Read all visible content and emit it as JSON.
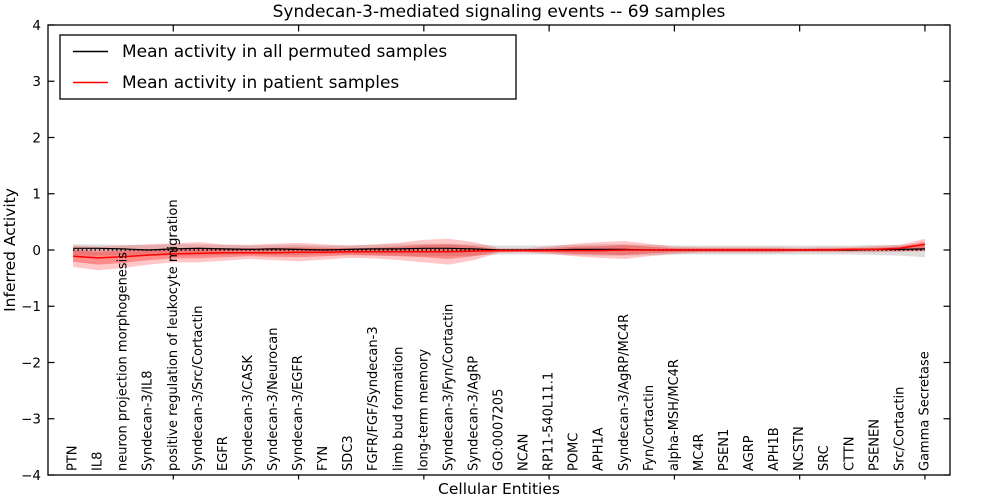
{
  "title": "Syndecan-3-mediated signaling events -- 69 samples",
  "axes": {
    "xlabel": "Cellular Entities",
    "ylabel": "Inferred Activity",
    "ylim": [
      -4,
      4
    ],
    "y_ticks": [
      4,
      3,
      2,
      1,
      0,
      -1,
      -2,
      -3,
      -4
    ],
    "y_tick_labels": [
      "4",
      "3",
      "2",
      "1",
      "0",
      "−1",
      "−2",
      "−3",
      "−4"
    ],
    "x_major_ticks": [
      5,
      10,
      15,
      20,
      25,
      30,
      35
    ]
  },
  "legend": {
    "position": "upper left",
    "entries": [
      {
        "label": "Mean activity in all permuted samples",
        "color": "#000000"
      },
      {
        "label": "Mean activity in patient samples",
        "color": "#ff0000"
      }
    ]
  },
  "chart_data": {
    "type": "line",
    "title": "Syndecan-3-mediated signaling events -- 69 samples",
    "xlabel": "Cellular Entities",
    "ylabel": "Inferred Activity",
    "ylim": [
      -4,
      4
    ],
    "grid": false,
    "legend_position": "upper left",
    "zero_line": {
      "show": true,
      "color": "#000000",
      "style": "dotted"
    },
    "categories": [
      "PTN",
      "IL8",
      "neuron projection morphogenesis",
      "Syndecan-3/IL8",
      "positive regulation of leukocyte migration",
      "Syndecan-3/Src/Cortactin",
      "EGFR",
      "Syndecan-3/CASK",
      "Syndecan-3/Neurocan",
      "Syndecan-3/EGFR",
      "FYN",
      "SDC3",
      "FGFR/FGF/Syndecan-3",
      "limb bud formation",
      "long-term memory",
      "Syndecan-3/Fyn/Cortactin",
      "Syndecan-3/AgRP",
      "GO:0007205",
      "NCAN",
      "RP11-540L11.1",
      "POMC",
      "APH1A",
      "Syndecan-3/AgRP/MC4R",
      "Fyn/Cortactin",
      "alpha-MSH/MC4R",
      "MC4R",
      "PSEN1",
      "AGRP",
      "APH1B",
      "NCSTN",
      "SRC",
      "CTTN",
      "PSENEN",
      "Src/Cortactin",
      "Gamma Secretase"
    ],
    "series": [
      {
        "name": "Mean activity in all permuted samples",
        "color": "#000000",
        "values": [
          0.03,
          0.03,
          0.02,
          0.0,
          0.02,
          0.03,
          0.02,
          0.01,
          0.02,
          0.01,
          0.0,
          0.01,
          0.02,
          0.02,
          0.03,
          0.03,
          0.02,
          0.0,
          0.0,
          0.0,
          0.01,
          0.01,
          0.01,
          0.0,
          0.0,
          0.0,
          0.0,
          0.0,
          0.0,
          0.0,
          0.0,
          0.0,
          0.01,
          0.01,
          0.02
        ]
      },
      {
        "name": "Mean activity in patient samples",
        "color": "#ff0000",
        "values": [
          -0.11,
          -0.14,
          -0.12,
          -0.09,
          -0.07,
          -0.06,
          -0.05,
          -0.05,
          -0.05,
          -0.04,
          -0.04,
          -0.03,
          -0.03,
          -0.03,
          -0.03,
          -0.03,
          -0.02,
          -0.01,
          -0.01,
          -0.01,
          -0.01,
          -0.01,
          0.0,
          0.0,
          0.0,
          0.0,
          0.0,
          0.0,
          0.0,
          0.0,
          0.0,
          0.01,
          0.01,
          0.03,
          0.1
        ]
      }
    ],
    "bands": [
      {
        "name": "permuted-samples-range",
        "color": "rgba(0,0,0,0.13)",
        "upper": [
          0.1,
          0.1,
          0.09,
          0.09,
          0.1,
          0.1,
          0.09,
          0.08,
          0.09,
          0.09,
          0.08,
          0.08,
          0.09,
          0.1,
          0.11,
          0.11,
          0.1,
          0.08,
          0.08,
          0.08,
          0.09,
          0.1,
          0.1,
          0.09,
          0.08,
          0.08,
          0.08,
          0.08,
          0.08,
          0.08,
          0.08,
          0.08,
          0.09,
          0.09,
          0.1
        ],
        "lower": [
          -0.1,
          -0.1,
          -0.09,
          -0.09,
          -0.1,
          -0.1,
          -0.09,
          -0.08,
          -0.09,
          -0.09,
          -0.08,
          -0.08,
          -0.09,
          -0.1,
          -0.11,
          -0.11,
          -0.1,
          -0.08,
          -0.08,
          -0.08,
          -0.09,
          -0.1,
          -0.1,
          -0.09,
          -0.08,
          -0.08,
          -0.08,
          -0.08,
          -0.08,
          -0.08,
          -0.08,
          -0.08,
          -0.09,
          -0.1,
          -0.13
        ]
      },
      {
        "name": "patient-samples-range-outer",
        "color": "rgba(255,0,0,0.22)",
        "upper": [
          0.08,
          0.06,
          0.08,
          0.1,
          0.12,
          0.14,
          0.1,
          0.09,
          0.11,
          0.13,
          0.1,
          0.08,
          0.1,
          0.13,
          0.18,
          0.2,
          0.14,
          0.03,
          0.03,
          0.06,
          0.11,
          0.14,
          0.16,
          0.11,
          0.06,
          0.05,
          0.05,
          0.05,
          0.05,
          0.04,
          0.05,
          0.05,
          0.07,
          0.09,
          0.2
        ],
        "lower": [
          -0.3,
          -0.36,
          -0.32,
          -0.26,
          -0.22,
          -0.22,
          -0.19,
          -0.16,
          -0.18,
          -0.2,
          -0.17,
          -0.14,
          -0.15,
          -0.18,
          -0.22,
          -0.26,
          -0.18,
          -0.05,
          -0.04,
          -0.07,
          -0.11,
          -0.14,
          -0.16,
          -0.11,
          -0.07,
          -0.05,
          -0.05,
          -0.05,
          -0.05,
          -0.04,
          -0.04,
          -0.04,
          -0.04,
          -0.03,
          -0.02
        ]
      },
      {
        "name": "patient-samples-range-inner",
        "color": "rgba(255,0,0,0.30)",
        "upper": [
          0.0,
          -0.03,
          -0.01,
          0.01,
          0.03,
          0.05,
          0.03,
          0.03,
          0.04,
          0.05,
          0.04,
          0.03,
          0.04,
          0.06,
          0.09,
          0.1,
          0.07,
          0.01,
          0.01,
          0.03,
          0.06,
          0.07,
          0.09,
          0.06,
          0.03,
          0.03,
          0.03,
          0.03,
          0.03,
          0.02,
          0.03,
          0.03,
          0.04,
          0.06,
          0.15
        ],
        "lower": [
          -0.21,
          -0.26,
          -0.23,
          -0.18,
          -0.15,
          -0.15,
          -0.13,
          -0.11,
          -0.12,
          -0.13,
          -0.11,
          -0.09,
          -0.1,
          -0.11,
          -0.13,
          -0.16,
          -0.11,
          -0.03,
          -0.03,
          -0.04,
          -0.07,
          -0.08,
          -0.09,
          -0.06,
          -0.04,
          -0.03,
          -0.03,
          -0.03,
          -0.03,
          -0.02,
          -0.02,
          -0.02,
          -0.02,
          -0.02,
          -0.01
        ]
      }
    ]
  }
}
